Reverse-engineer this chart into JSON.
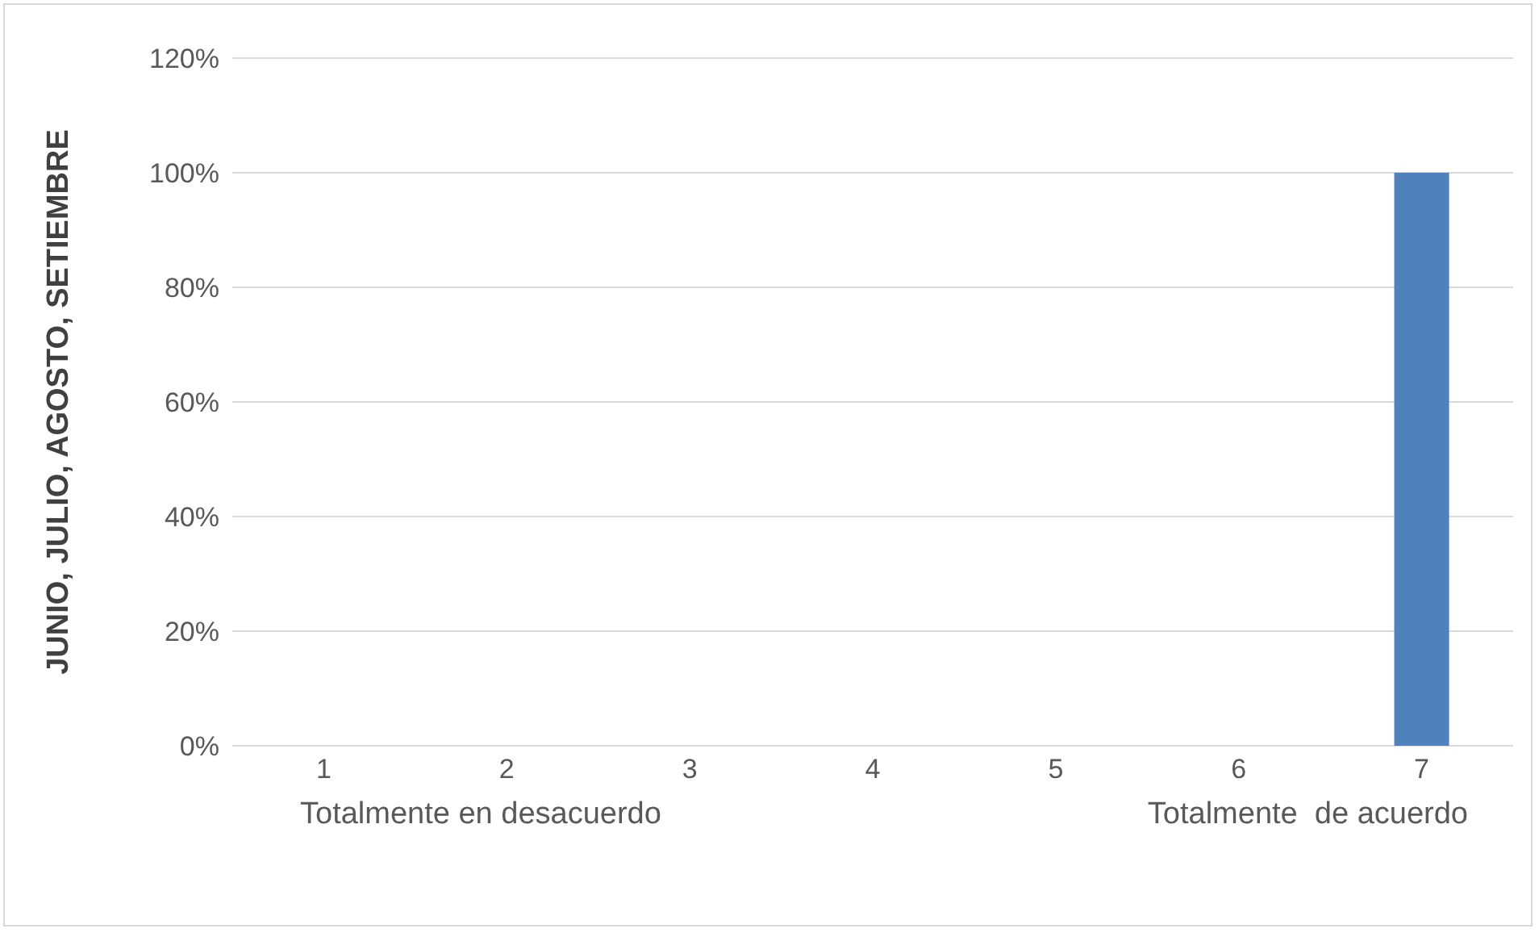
{
  "chart_data": {
    "type": "bar",
    "ylabel": "JUNIO, JULIO, AGOSTO, SETIEMBRE",
    "categories": [
      "1",
      "2",
      "3",
      "4",
      "5",
      "6",
      "7"
    ],
    "values": [
      0,
      0,
      0,
      0,
      0,
      0,
      100
    ],
    "color": "#4f81bd",
    "ylim": [
      0,
      120
    ],
    "yticks": [
      {
        "value": 0,
        "label": "0%"
      },
      {
        "value": 20,
        "label": "20%"
      },
      {
        "value": 40,
        "label": "40%"
      },
      {
        "value": 60,
        "label": "60%"
      },
      {
        "value": 80,
        "label": "80%"
      },
      {
        "value": 100,
        "label": "100%"
      },
      {
        "value": 120,
        "label": "120%"
      }
    ],
    "grid": "y",
    "annotations": [
      "Totalmente en desacuerdo",
      "Totalmente  de acuerdo"
    ]
  }
}
